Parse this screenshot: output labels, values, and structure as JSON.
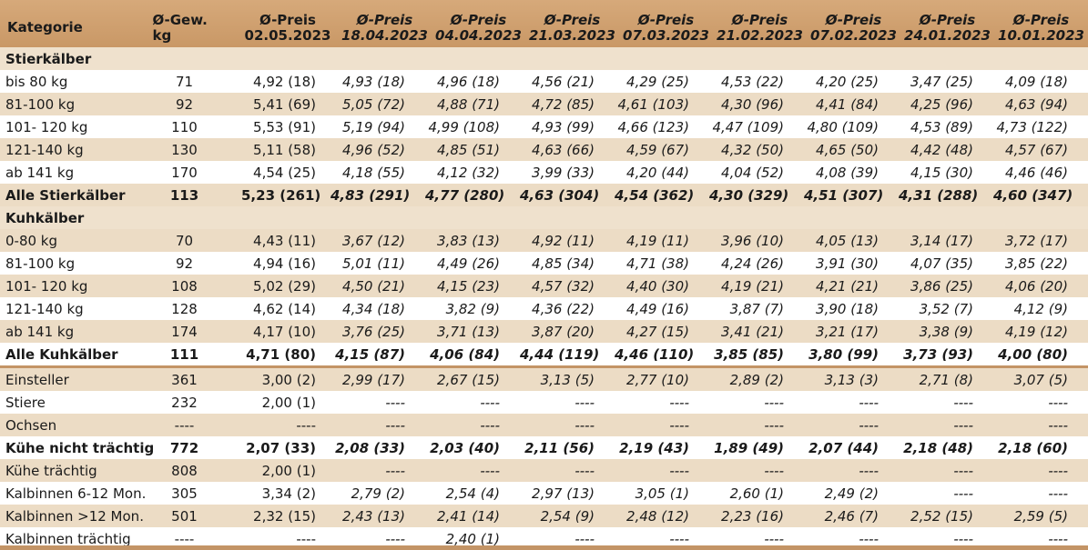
{
  "header": {
    "kategorie": "Kategorie",
    "gew_line1": "Ø-Gew.",
    "gew_line2": "kg",
    "preis_label": "Ø-Preis",
    "dates": [
      "02.05.2023",
      "18.04.2023",
      "04.04.2023",
      "21.03.2023",
      "07.03.2023",
      "21.02.2023",
      "07.02.2023",
      "24.01.2023",
      "10.01.2023"
    ]
  },
  "rows": [
    {
      "type": "section",
      "label": "Stierkälber"
    },
    {
      "type": "data",
      "style": "plain",
      "label": "bis 80 kg",
      "gew": "71",
      "values": [
        "4,92 (18)",
        "4,93 (18)",
        "4,96 (18)",
        "4,56 (21)",
        "4,29 (25)",
        "4,53 (22)",
        "4,20 (25)",
        "3,47 (25)",
        "4,09 (18)"
      ]
    },
    {
      "type": "data",
      "style": "alt",
      "label": "81-100 kg",
      "gew": "92",
      "values": [
        "5,41 (69)",
        "5,05 (72)",
        "4,88 (71)",
        "4,72 (85)",
        "4,61 (103)",
        "4,30 (96)",
        "4,41 (84)",
        "4,25 (96)",
        "4,63 (94)"
      ]
    },
    {
      "type": "data",
      "style": "plain",
      "label": "101- 120 kg",
      "gew": "110",
      "values": [
        "5,53 (91)",
        "5,19 (94)",
        "4,99 (108)",
        "4,93 (99)",
        "4,66 (123)",
        "4,47 (109)",
        "4,80 (109)",
        "4,53 (89)",
        "4,73 (122)"
      ]
    },
    {
      "type": "data",
      "style": "alt",
      "label": "121-140 kg",
      "gew": "130",
      "values": [
        "5,11 (58)",
        "4,96 (52)",
        "4,85 (51)",
        "4,63 (66)",
        "4,59 (67)",
        "4,32 (50)",
        "4,65 (50)",
        "4,42 (48)",
        "4,57 (67)"
      ]
    },
    {
      "type": "data",
      "style": "plain",
      "label": "ab 141 kg",
      "gew": "170",
      "values": [
        "4,54 (25)",
        "4,18 (55)",
        "4,12 (32)",
        "3,99 (33)",
        "4,20 (44)",
        "4,04 (52)",
        "4,08 (39)",
        "4,15 (30)",
        "4,46 (46)"
      ]
    },
    {
      "type": "total",
      "style": "alt",
      "label": "Alle Stierkälber",
      "gew": "113",
      "values": [
        "5,23 (261)",
        "4,83 (291)",
        "4,77 (280)",
        "4,63 (304)",
        "4,54 (362)",
        "4,30 (329)",
        "4,51 (307)",
        "4,31 (288)",
        "4,60 (347)"
      ]
    },
    {
      "type": "section",
      "label": "Kuhkälber"
    },
    {
      "type": "data",
      "style": "alt",
      "label": "0-80 kg",
      "gew": "70",
      "values": [
        "4,43 (11)",
        "3,67 (12)",
        "3,83 (13)",
        "4,92 (11)",
        "4,19 (11)",
        "3,96 (10)",
        "4,05 (13)",
        "3,14 (17)",
        "3,72 (17)"
      ]
    },
    {
      "type": "data",
      "style": "plain",
      "label": "81-100 kg",
      "gew": "92",
      "values": [
        "4,94 (16)",
        "5,01 (11)",
        "4,49 (26)",
        "4,85 (34)",
        "4,71 (38)",
        "4,24 (26)",
        "3,91 (30)",
        "4,07 (35)",
        "3,85 (22)"
      ]
    },
    {
      "type": "data",
      "style": "alt",
      "label": "101- 120 kg",
      "gew": "108",
      "values": [
        "5,02 (29)",
        "4,50 (21)",
        "4,15 (23)",
        "4,57 (32)",
        "4,40 (30)",
        "4,19 (21)",
        "4,21 (21)",
        "3,86 (25)",
        "4,06 (20)"
      ]
    },
    {
      "type": "data",
      "style": "plain",
      "label": "121-140 kg",
      "gew": "128",
      "values": [
        "4,62 (14)",
        "4,34 (18)",
        "3,82 (9)",
        "4,36 (22)",
        "4,49 (16)",
        "3,87 (7)",
        "3,90 (18)",
        "3,52 (7)",
        "4,12 (9)"
      ]
    },
    {
      "type": "data",
      "style": "alt",
      "label": "ab 141 kg",
      "gew": "174",
      "values": [
        "4,17 (10)",
        "3,76 (25)",
        "3,71 (13)",
        "3,87 (20)",
        "4,27 (15)",
        "3,41 (21)",
        "3,21 (17)",
        "3,38 (9)",
        "4,19 (12)"
      ]
    },
    {
      "type": "total",
      "style": "plain",
      "label": "Alle Kuhkälber",
      "gew": "111",
      "values": [
        "4,71 (80)",
        "4,15 (87)",
        "4,06 (84)",
        "4,44 (119)",
        "4,46 (110)",
        "3,85 (85)",
        "3,80 (99)",
        "3,73 (93)",
        "4,00 (80)"
      ]
    },
    {
      "type": "data",
      "style": "alt",
      "divtop": true,
      "label": "Einsteller",
      "gew": "361",
      "values": [
        "3,00 (2)",
        "2,99 (17)",
        "2,67 (15)",
        "3,13 (5)",
        "2,77 (10)",
        "2,89 (2)",
        "3,13 (3)",
        "2,71 (8)",
        "3,07 (5)"
      ]
    },
    {
      "type": "data",
      "style": "plain",
      "label": "Stiere",
      "gew": "232",
      "values": [
        "2,00 (1)",
        "----",
        "----",
        "----",
        "----",
        "----",
        "----",
        "----",
        "----"
      ]
    },
    {
      "type": "data",
      "style": "alt",
      "label": "Ochsen",
      "gew": "----",
      "values": [
        "----",
        "----",
        "----",
        "----",
        "----",
        "----",
        "----",
        "----",
        "----"
      ]
    },
    {
      "type": "total",
      "style": "plain",
      "label": "Kühe nicht trächtig",
      "gew": "772",
      "values": [
        "2,07 (33)",
        "2,08 (33)",
        "2,03 (40)",
        "2,11 (56)",
        "2,19 (43)",
        "1,89 (49)",
        "2,07 (44)",
        "2,18 (48)",
        "2,18 (60)"
      ]
    },
    {
      "type": "data",
      "style": "alt",
      "label": "Kühe trächtig",
      "gew": "808",
      "values": [
        "2,00 (1)",
        "----",
        "----",
        "----",
        "----",
        "----",
        "----",
        "----",
        "----"
      ]
    },
    {
      "type": "data",
      "style": "plain",
      "label": "Kalbinnen 6-12 Mon.",
      "gew": "305",
      "values": [
        "3,34 (2)",
        "2,79 (2)",
        "2,54 (4)",
        "2,97 (13)",
        "3,05 (1)",
        "2,60 (1)",
        "2,49 (2)",
        "----",
        "----"
      ]
    },
    {
      "type": "data",
      "style": "alt",
      "label": "Kalbinnen >12 Mon.",
      "gew": "501",
      "values": [
        "2,32 (15)",
        "2,43 (13)",
        "2,41 (14)",
        "2,54 (9)",
        "2,48 (12)",
        "2,23 (16)",
        "2,46 (7)",
        "2,52 (15)",
        "2,59 (5)"
      ]
    },
    {
      "type": "data",
      "style": "plain",
      "label": "Kalbinnen trächtig",
      "gew": "----",
      "values": [
        "----",
        "----",
        "2,40 (1)",
        "----",
        "----",
        "----",
        "----",
        "----",
        "----"
      ]
    }
  ]
}
